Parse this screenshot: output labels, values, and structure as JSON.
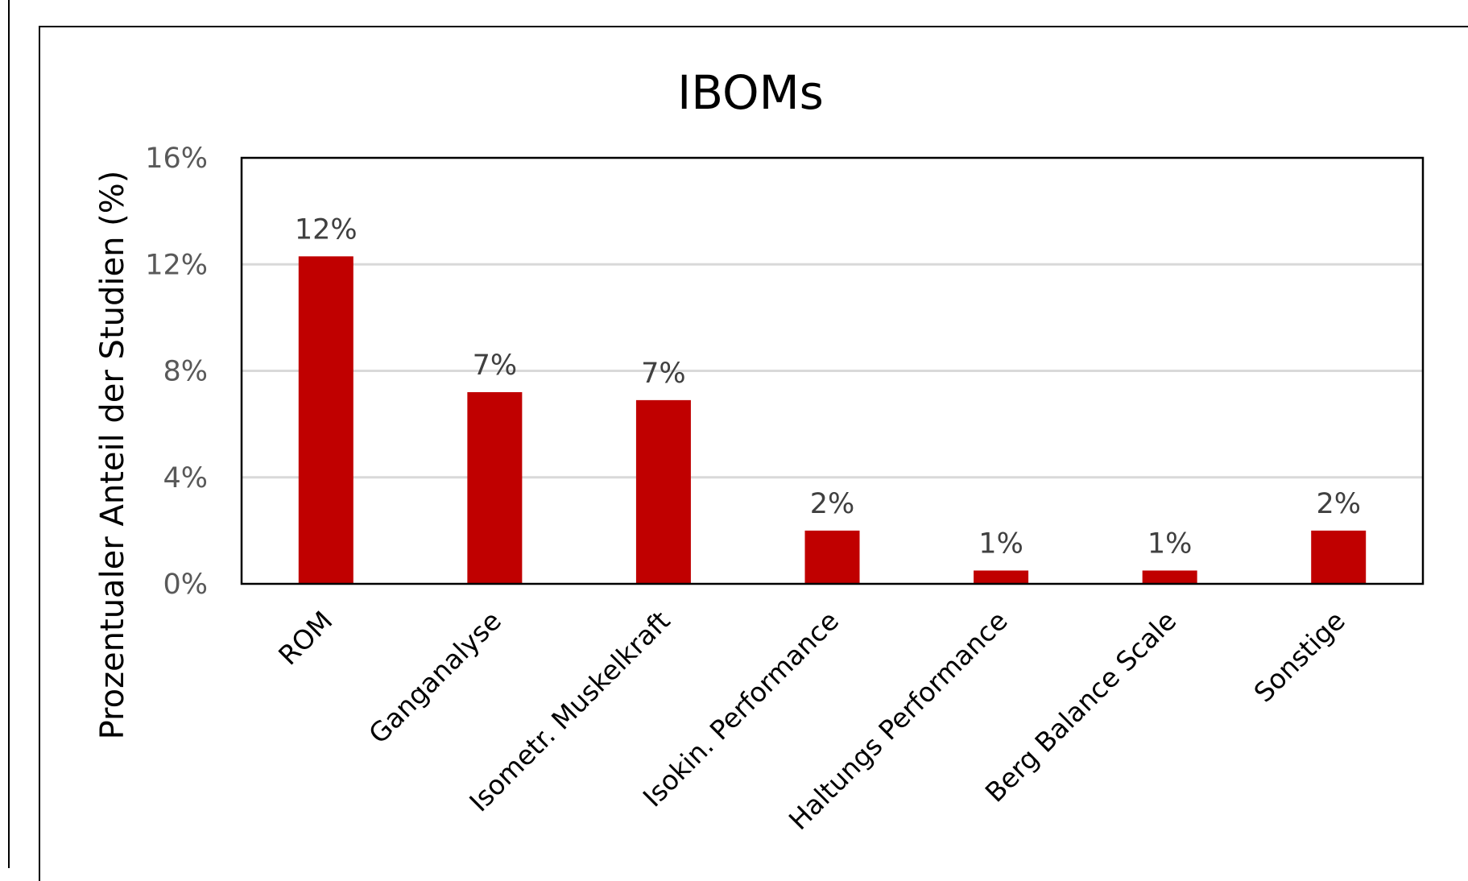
{
  "chart_data": {
    "type": "bar",
    "title": "IBOMs",
    "xlabel": "",
    "ylabel": "Prozentualer Anteil der Studien (%)",
    "categories": [
      "ROM",
      "Ganganalyse",
      "Isometr. Muskelkraft",
      "Isokin. Performance",
      "Haltungs Performance",
      "Berg Balance Scale",
      "Sonstige"
    ],
    "values": [
      12.3,
      7.2,
      6.9,
      2.0,
      0.5,
      0.5,
      2.0
    ],
    "data_labels": [
      "12%",
      "7%",
      "7%",
      "2%",
      "1%",
      "1%",
      "2%"
    ],
    "ylim": [
      0,
      16
    ],
    "yticks": [
      0,
      4,
      8,
      12,
      16
    ],
    "ytick_labels": [
      "0%",
      "4%",
      "8%",
      "12%",
      "16%"
    ],
    "grid": true,
    "legend": "none",
    "bar_color": "#c00000"
  }
}
